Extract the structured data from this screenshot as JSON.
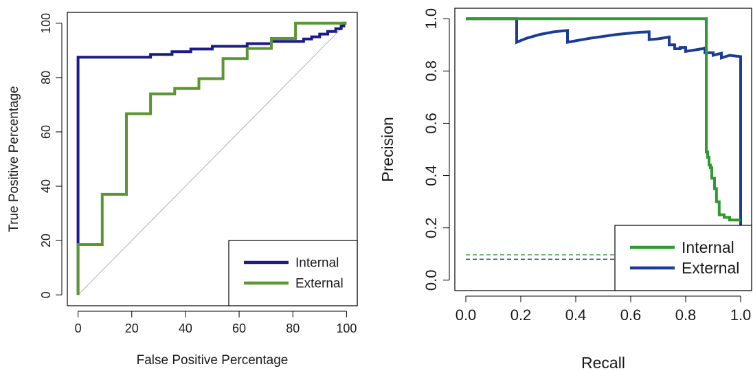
{
  "colors": {
    "internal": "#1a1a8c",
    "external": "#5a9632",
    "pr_internal": "#2f9a2f",
    "pr_external": "#1a3c96",
    "diagonal": "#b0b0b0"
  },
  "chart_data": [
    {
      "type": "line",
      "xlabel": "False Positive Percentage",
      "ylabel": "True Positive Percentage",
      "xlim": [
        0,
        100
      ],
      "ylim": [
        0,
        100
      ],
      "x_ticks": [
        0,
        20,
        40,
        60,
        80,
        100
      ],
      "y_ticks": [
        0,
        20,
        40,
        60,
        80,
        100
      ],
      "legend": {
        "position": "bottom-right"
      },
      "reference_line": {
        "from": [
          0,
          0
        ],
        "to": [
          100,
          100
        ]
      },
      "series": [
        {
          "name": "Internal",
          "color": "#1a1a8c",
          "step": true,
          "points": [
            [
              0,
              0
            ],
            [
              0,
              18.5
            ],
            [
              0,
              87.5
            ],
            [
              27,
              87.5
            ],
            [
              27,
              88.5
            ],
            [
              35,
              88.5
            ],
            [
              35,
              89.5
            ],
            [
              42,
              89.5
            ],
            [
              42,
              90.5
            ],
            [
              50,
              90.5
            ],
            [
              50,
              91.5
            ],
            [
              63,
              91.5
            ],
            [
              63,
              92.5
            ],
            [
              72,
              92.5
            ],
            [
              72,
              93.3
            ],
            [
              84,
              93.3
            ],
            [
              84,
              94.2
            ],
            [
              87,
              94.2
            ],
            [
              87,
              95
            ],
            [
              90,
              95
            ],
            [
              90,
              96
            ],
            [
              93,
              96
            ],
            [
              93,
              97
            ],
            [
              96,
              97
            ],
            [
              96,
              98
            ],
            [
              98,
              98
            ],
            [
              98,
              99
            ],
            [
              99,
              99
            ],
            [
              99,
              100
            ],
            [
              100,
              100
            ]
          ]
        },
        {
          "name": "External",
          "color": "#5a9632",
          "step": true,
          "points": [
            [
              0,
              0
            ],
            [
              0,
              18.5
            ],
            [
              9,
              18.5
            ],
            [
              9,
              37
            ],
            [
              18,
              37
            ],
            [
              18,
              66.7
            ],
            [
              27,
              66.7
            ],
            [
              27,
              74
            ],
            [
              36,
              74
            ],
            [
              36,
              76
            ],
            [
              45,
              76
            ],
            [
              45,
              79.6
            ],
            [
              54,
              79.6
            ],
            [
              54,
              87
            ],
            [
              63,
              87
            ],
            [
              63,
              90.7
            ],
            [
              72,
              90.7
            ],
            [
              72,
              94.4
            ],
            [
              81,
              94.4
            ],
            [
              81,
              100
            ],
            [
              100,
              100
            ]
          ]
        }
      ]
    },
    {
      "type": "line",
      "xlabel": "Recall",
      "ylabel": "Precision",
      "xlim": [
        0,
        1
      ],
      "ylim": [
        0,
        1
      ],
      "x_ticks": [
        "0.0",
        "0.2",
        "0.4",
        "0.6",
        "0.8",
        "1.0"
      ],
      "y_ticks": [
        "0.0",
        "0.2",
        "0.4",
        "0.6",
        "0.8",
        "1.0"
      ],
      "legend": {
        "position": "bottom-right"
      },
      "series": [
        {
          "name": "Internal",
          "color": "#2f9a2f",
          "step": true,
          "points": [
            [
              0,
              1
            ],
            [
              0.875,
              1
            ],
            [
              0.875,
              0.49
            ],
            [
              0.88,
              0.49
            ],
            [
              0.88,
              0.47
            ],
            [
              0.885,
              0.47
            ],
            [
              0.885,
              0.44
            ],
            [
              0.89,
              0.44
            ],
            [
              0.89,
              0.43
            ],
            [
              0.895,
              0.43
            ],
            [
              0.895,
              0.39
            ],
            [
              0.905,
              0.39
            ],
            [
              0.905,
              0.35
            ],
            [
              0.912,
              0.35
            ],
            [
              0.912,
              0.3
            ],
            [
              0.922,
              0.3
            ],
            [
              0.922,
              0.25
            ],
            [
              0.94,
              0.25
            ],
            [
              0.94,
              0.24
            ],
            [
              0.96,
              0.24
            ],
            [
              0.96,
              0.23
            ],
            [
              1.0,
              0.23
            ]
          ],
          "baseline": 0.097
        },
        {
          "name": "External",
          "color": "#1a3c96",
          "step": true,
          "points": [
            [
              0,
              1
            ],
            [
              0.185,
              1
            ],
            [
              0.185,
              0.91
            ],
            [
              0.22,
              0.925
            ],
            [
              0.27,
              0.94
            ],
            [
              0.32,
              0.95
            ],
            [
              0.37,
              0.955
            ],
            [
              0.37,
              0.91
            ],
            [
              0.45,
              0.925
            ],
            [
              0.55,
              0.94
            ],
            [
              0.63,
              0.948
            ],
            [
              0.667,
              0.95
            ],
            [
              0.667,
              0.92
            ],
            [
              0.7,
              0.923
            ],
            [
              0.74,
              0.93
            ],
            [
              0.74,
              0.9
            ],
            [
              0.76,
              0.9
            ],
            [
              0.76,
              0.885
            ],
            [
              0.78,
              0.885
            ],
            [
              0.78,
              0.89
            ],
            [
              0.8,
              0.89
            ],
            [
              0.8,
              0.875
            ],
            [
              0.86,
              0.885
            ],
            [
              0.87,
              0.888
            ],
            [
              0.87,
              0.87
            ],
            [
              0.9,
              0.87
            ],
            [
              0.9,
              0.86
            ],
            [
              0.93,
              0.868
            ],
            [
              0.93,
              0.85
            ],
            [
              0.96,
              0.86
            ],
            [
              1.0,
              0.855
            ],
            [
              1.0,
              0.2
            ]
          ],
          "baseline": 0.08
        }
      ]
    }
  ]
}
